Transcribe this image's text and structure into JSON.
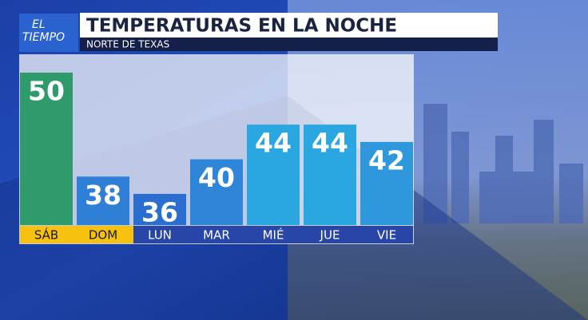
{
  "chart_data": {
    "type": "bar",
    "logo": [
      "EL",
      "TIEMPO"
    ],
    "title": "TEMPERATURAS EN LA NOCHE",
    "subtitle": "NORTE DE TEXAS",
    "categories": [
      "SÁB",
      "DOM",
      "LUN",
      "MAR",
      "MIÉ",
      "JUE",
      "VIE"
    ],
    "values": [
      50,
      38,
      36,
      40,
      44,
      44,
      42
    ],
    "colors": [
      "#2f9a6c",
      "#2f7fd6",
      "#2a6fd0",
      "#2f86d8",
      "#2aa6e0",
      "#2aa6e0",
      "#2f98dc"
    ],
    "label_colors": [
      "#f6c10f",
      "#f6c10f",
      "#2746a8",
      "#2746a8",
      "#2746a8",
      "#2746a8",
      "#2746a8"
    ]
  }
}
